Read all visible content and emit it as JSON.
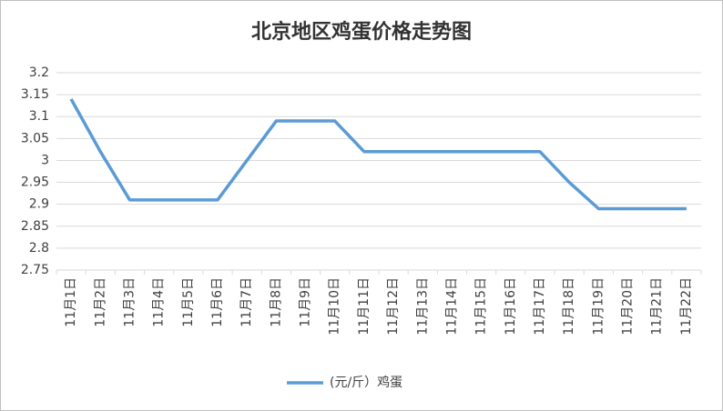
{
  "chart_data": {
    "type": "line",
    "title": "北京地区鸡蛋价格走势图",
    "categories": [
      "11月1日",
      "11月2日",
      "11月3日",
      "11月4日",
      "11月5日",
      "11月6日",
      "11月7日",
      "11月8日",
      "11月9日",
      "11月10日",
      "11月11日",
      "11月12日",
      "11月13日",
      "11月14日",
      "11月15日",
      "11月16日",
      "11月17日",
      "11月18日",
      "11月19日",
      "11月20日",
      "11月21日",
      "11月22日"
    ],
    "series": [
      {
        "name": "(元/斤）鸡蛋",
        "color": "#5b9bd5",
        "values": [
          3.14,
          3.02,
          2.91,
          2.91,
          2.91,
          2.91,
          3.0,
          3.09,
          3.09,
          3.09,
          3.02,
          3.02,
          3.02,
          3.02,
          3.02,
          3.02,
          3.02,
          2.95,
          2.89,
          2.89,
          2.89,
          2.89
        ]
      }
    ],
    "ylim": [
      2.75,
      3.2
    ],
    "yticks": [
      2.75,
      2.8,
      2.85,
      2.9,
      2.95,
      3,
      3.05,
      3.1,
      3.15,
      3.2
    ],
    "grid": true,
    "legend": "bottom"
  }
}
